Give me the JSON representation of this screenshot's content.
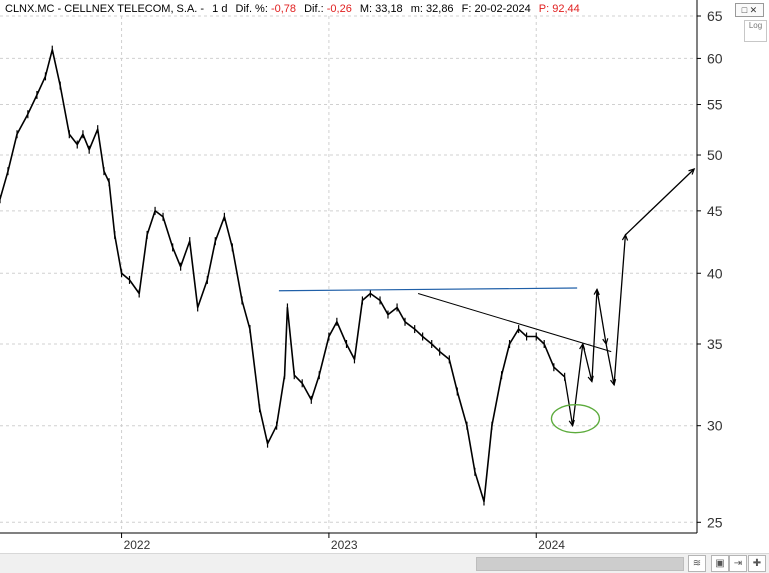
{
  "header": {
    "ticker": "CLNX.MC - CELLNEX TELECOM, S.A. -",
    "interval": "1 d",
    "dif_pct_label": "Dif. %:",
    "dif_pct_value": "-0,78",
    "dif_label": "Dif.:",
    "dif_value": "-0,26",
    "max_label": "M: 33,18",
    "min_label": "m: 32,86",
    "date_label": "F: 20-02-2024",
    "p_label": "P: 92,44"
  },
  "controls": {
    "log_label": "Log",
    "corner_label": "□ ✕"
  },
  "colors": {
    "background": "#ffffff",
    "price": "#000000",
    "resistance": "#1f5fa8",
    "ellipse": "#5cab3c",
    "negative": "#e02020",
    "grid": "#d0d0d0"
  },
  "chart_data": {
    "type": "line",
    "title": "",
    "xlabel": "",
    "ylabel": "",
    "y_scale": "log",
    "ylim": [
      24.5,
      65
    ],
    "xlim": [
      "2021-06-01",
      "2024-10-10"
    ],
    "x_tick_labels": [
      "2022",
      "2023",
      "2024"
    ],
    "y_ticks": [
      25,
      30,
      35,
      40,
      45,
      50,
      55,
      60,
      65
    ],
    "y_tick_labels": [
      "25",
      "30",
      "35",
      "40",
      "45",
      "50",
      "55",
      "60",
      "65"
    ],
    "grid": true,
    "legend": "none",
    "series": [
      {
        "x": [
          "2021-06-01",
          "2021-06-15",
          "2021-07-01",
          "2021-07-20",
          "2021-08-05",
          "2021-08-20",
          "2021-09-01",
          "2021-09-15",
          "2021-10-01",
          "2021-10-15",
          "2021-10-25",
          "2021-11-05",
          "2021-11-20",
          "2021-12-01",
          "2021-12-10",
          "2021-12-20",
          "2022-01-01",
          "2022-01-15",
          "2022-02-01",
          "2022-02-15",
          "2022-03-01",
          "2022-03-15",
          "2022-04-01",
          "2022-04-15",
          "2022-05-01",
          "2022-05-15",
          "2022-06-01",
          "2022-06-15",
          "2022-07-01",
          "2022-07-15",
          "2022-08-01",
          "2022-08-15",
          "2022-09-01",
          "2022-09-15",
          "2022-10-01",
          "2022-10-15",
          "2022-10-20",
          "2022-11-01",
          "2022-11-15",
          "2022-12-01",
          "2022-12-15",
          "2023-01-01",
          "2023-01-15",
          "2023-02-01",
          "2023-02-15",
          "2023-03-01",
          "2023-03-15",
          "2023-04-01",
          "2023-04-15",
          "2023-05-01",
          "2023-05-15",
          "2023-06-01",
          "2023-06-15",
          "2023-07-01",
          "2023-07-15",
          "2023-08-01",
          "2023-08-15",
          "2023-09-01",
          "2023-09-15",
          "2023-10-01",
          "2023-10-15",
          "2023-11-01",
          "2023-11-15",
          "2023-12-01",
          "2023-12-15",
          "2024-01-01",
          "2024-01-15",
          "2024-02-01",
          "2024-02-20"
        ],
        "values": [
          46.0,
          48.5,
          52.0,
          54.0,
          56.0,
          58.0,
          61.0,
          57.0,
          52.0,
          51.0,
          52.0,
          50.5,
          52.5,
          48.5,
          47.5,
          43.0,
          40.0,
          39.5,
          38.5,
          43.0,
          45.0,
          44.5,
          42.0,
          40.5,
          42.5,
          37.5,
          39.5,
          42.5,
          44.5,
          42.0,
          38.0,
          36.0,
          31.0,
          29.0,
          30.0,
          33.0,
          37.5,
          33.0,
          32.5,
          31.5,
          33.0,
          35.5,
          36.5,
          35.0,
          34.0,
          38.0,
          38.5,
          38.0,
          37.0,
          37.5,
          36.5,
          36.0,
          35.5,
          35.0,
          34.5,
          34.0,
          32.0,
          30.0,
          27.5,
          26.0,
          30.0,
          33.0,
          35.0,
          36.0,
          35.5,
          35.5,
          35.0,
          33.5,
          32.9
        ]
      }
    ],
    "projection": {
      "x": [
        "2024-02-20",
        "2024-03-05",
        "2024-03-23",
        "2024-04-08",
        "2024-04-17",
        "2024-05-03",
        "2024-05-17",
        "2024-06-06",
        "2024-10-05"
      ],
      "values": [
        32.9,
        30.0,
        35.0,
        32.6,
        38.8,
        35.0,
        32.4,
        43.0,
        48.7
      ]
    },
    "resistance_line": {
      "x": [
        "2022-10-05",
        "2024-03-13"
      ],
      "values": [
        38.7,
        38.9
      ]
    },
    "trend_line": {
      "x": [
        "2023-06-07",
        "2024-05-12"
      ],
      "values": [
        38.5,
        34.5
      ]
    },
    "ellipse_marker": {
      "x": "2024-03-10",
      "y": 30.4
    }
  }
}
